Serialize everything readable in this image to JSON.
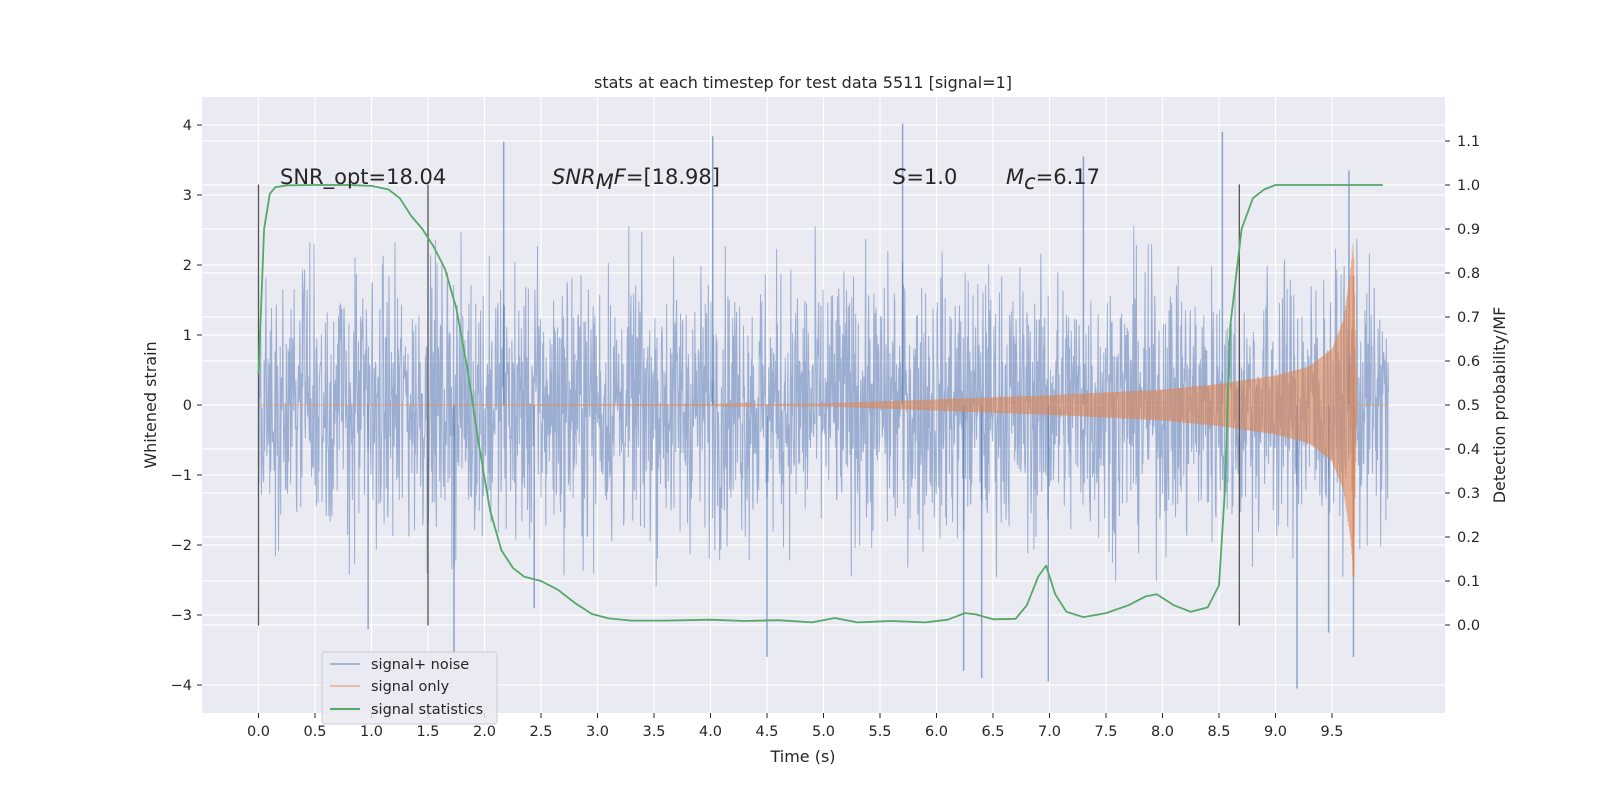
{
  "chart_data": {
    "type": "line",
    "title": "stats at each timestep for test data 5511 [signal=1]",
    "xlabel": "Time (s)",
    "ylabel": "Whitened strain",
    "y2label": "Detection probability/MF",
    "xlim": [
      -0.5,
      10.5
    ],
    "ylim": [
      -4.4,
      4.4
    ],
    "y2lim": [
      -0.2,
      1.2
    ],
    "x_ticks": [
      0.0,
      0.5,
      1.0,
      1.5,
      2.0,
      2.5,
      3.0,
      3.5,
      4.0,
      4.5,
      5.0,
      5.5,
      6.0,
      6.5,
      7.0,
      7.5,
      8.0,
      8.5,
      9.0,
      9.5
    ],
    "x_tick_labels": [
      "0.0",
      "0.5",
      "1.0",
      "1.5",
      "2.0",
      "2.5",
      "3.0",
      "3.5",
      "4.0",
      "4.5",
      "5.0",
      "5.5",
      "6.0",
      "6.5",
      "7.0",
      "7.5",
      "8.0",
      "8.5",
      "9.0",
      "9.5"
    ],
    "y_ticks": [
      4,
      3,
      2,
      1,
      0,
      -1,
      -2,
      -3,
      -4
    ],
    "y_tick_labels": [
      "4",
      "3",
      "2",
      "1",
      "0",
      "−1",
      "−2",
      "−3",
      "−4"
    ],
    "y2_ticks": [
      1.1,
      1.0,
      0.9,
      0.8,
      0.7,
      0.6,
      0.5,
      0.4,
      0.3,
      0.2,
      0.1,
      0.0
    ],
    "y2_tick_labels": [
      "1.1",
      "1.0",
      "0.9",
      "0.8",
      "0.7",
      "0.6",
      "0.5",
      "0.4",
      "0.3",
      "0.2",
      "0.1",
      "0.0"
    ],
    "grid": true,
    "legend_position": "lower-left",
    "annotations": {
      "snr_opt": "SNR_opt=18.04",
      "snr_mf_italic": "SNR",
      "snr_mf_sub": "M",
      "snr_mf_rest_italic": "F",
      "snr_mf_value": "=[18.98]",
      "s_italic": "S",
      "s_value": "=1.0",
      "mc_italic": "M",
      "mc_sub": "c",
      "mc_value": "=6.17"
    },
    "vertical_lines_x": [
      0.0,
      1.5,
      8.68
    ],
    "vertical_lines_ylim": [
      -3.15,
      3.15
    ],
    "colors": {
      "noise": "#4c72b0",
      "signal": "#dd8452",
      "stats": "#55a868",
      "vline": "#555555",
      "plot_bg": "#eaeaf2",
      "grid": "#ffffff"
    },
    "series": [
      {
        "name": "signal+ noise",
        "axis": "left",
        "style": "dense oscillating noise, envelope approx ±2 with spikes to ±3.5",
        "x_range": [
          0.0,
          10.0
        ],
        "typical_amplitude": 1.8,
        "spikes": [
          [
            0.97,
            -3.2
          ],
          [
            1.73,
            -3.55
          ],
          [
            2.17,
            3.76
          ],
          [
            2.44,
            -2.9
          ],
          [
            4.02,
            3.84
          ],
          [
            4.5,
            -3.6
          ],
          [
            5.7,
            4.02
          ],
          [
            6.24,
            -3.8
          ],
          [
            6.4,
            -3.9
          ],
          [
            6.99,
            -3.95
          ],
          [
            7.3,
            3.55
          ],
          [
            8.53,
            3.9
          ],
          [
            9.19,
            -4.05
          ],
          [
            9.47,
            -3.25
          ],
          [
            9.69,
            -3.6
          ],
          [
            9.65,
            3.35
          ]
        ]
      },
      {
        "name": "signal only",
        "axis": "left",
        "style": "chirp with growing amplitude",
        "x": [
          0.0,
          4.0,
          5.0,
          6.0,
          7.0,
          8.0,
          8.5,
          9.0,
          9.3,
          9.5,
          9.6,
          9.66,
          9.69,
          9.72
        ],
        "amplitude": [
          0.0,
          0.005,
          0.02,
          0.08,
          0.14,
          0.22,
          0.3,
          0.42,
          0.55,
          0.8,
          1.2,
          1.85,
          2.35,
          0.05
        ]
      },
      {
        "name": "signal statistics",
        "axis": "right",
        "x": [
          0.0,
          0.05,
          0.1,
          0.15,
          0.25,
          0.5,
          0.8,
          1.0,
          1.15,
          1.25,
          1.35,
          1.45,
          1.55,
          1.65,
          1.75,
          1.85,
          1.95,
          2.05,
          2.15,
          2.25,
          2.35,
          2.5,
          2.65,
          2.8,
          2.95,
          3.1,
          3.3,
          3.6,
          4.0,
          4.3,
          4.6,
          4.9,
          5.1,
          5.3,
          5.6,
          5.9,
          6.1,
          6.25,
          6.35,
          6.5,
          6.7,
          6.8,
          6.9,
          6.97,
          7.05,
          7.15,
          7.3,
          7.5,
          7.7,
          7.85,
          7.95,
          8.1,
          8.25,
          8.4,
          8.5,
          8.55,
          8.6,
          8.7,
          8.8,
          8.9,
          9.0,
          9.2,
          9.5,
          9.8,
          9.95
        ],
        "values": [
          0.57,
          0.9,
          0.98,
          0.995,
          0.999,
          1.0,
          1.0,
          0.998,
          0.99,
          0.97,
          0.93,
          0.9,
          0.86,
          0.81,
          0.72,
          0.58,
          0.41,
          0.26,
          0.17,
          0.13,
          0.11,
          0.1,
          0.08,
          0.05,
          0.025,
          0.015,
          0.01,
          0.01,
          0.012,
          0.009,
          0.011,
          0.006,
          0.016,
          0.006,
          0.009,
          0.006,
          0.012,
          0.027,
          0.024,
          0.013,
          0.014,
          0.045,
          0.11,
          0.135,
          0.07,
          0.03,
          0.018,
          0.027,
          0.045,
          0.065,
          0.07,
          0.045,
          0.03,
          0.04,
          0.09,
          0.3,
          0.68,
          0.9,
          0.97,
          0.99,
          1.0,
          1.0,
          1.0,
          1.0,
          1.0
        ]
      }
    ]
  }
}
